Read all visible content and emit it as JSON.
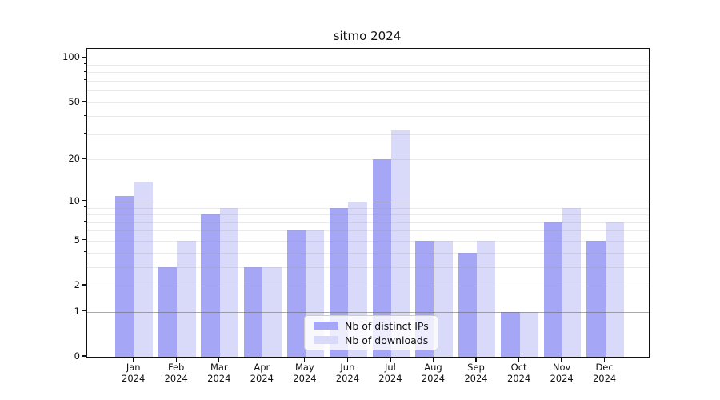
{
  "title": "sitmo 2024",
  "chart_data": {
    "type": "bar",
    "title": "sitmo 2024",
    "xlabel": "",
    "ylabel": "",
    "yscale": "log1p",
    "ylim": [
      0,
      115
    ],
    "yticks": [
      0,
      1,
      2,
      5,
      10,
      20,
      50,
      100
    ],
    "ytick_labels": [
      "0",
      "1",
      "2",
      "5",
      "10",
      "20",
      "50",
      "100"
    ],
    "decade_gridlines": [
      1,
      10,
      100
    ],
    "minor_gridlines": [
      2,
      3,
      4,
      5,
      6,
      7,
      8,
      9,
      20,
      30,
      40,
      50,
      60,
      70,
      80,
      90
    ],
    "grid": true,
    "legend_position": "lower center",
    "categories": [
      "Jan 2024",
      "Feb 2024",
      "Mar 2024",
      "Apr 2024",
      "May 2024",
      "Jun 2024",
      "Jul 2024",
      "Aug 2024",
      "Sep 2024",
      "Oct 2024",
      "Nov 2024",
      "Dec 2024"
    ],
    "category_months": [
      "Jan",
      "Feb",
      "Mar",
      "Apr",
      "May",
      "Jun",
      "Jul",
      "Aug",
      "Sep",
      "Oct",
      "Nov",
      "Dec"
    ],
    "category_year": "2024",
    "series": [
      {
        "name": "Nb of distinct IPs",
        "color": "#a6a6f6",
        "values": [
          11,
          3,
          8,
          3,
          6,
          9,
          20,
          5,
          4,
          1,
          7,
          5
        ]
      },
      {
        "name": "Nb of downloads",
        "color": "#d9d9fa",
        "values": [
          14,
          5,
          9,
          3,
          6,
          10,
          32,
          5,
          5,
          1,
          9,
          7
        ]
      }
    ]
  },
  "colors": {
    "bar_distinct_ips": "#a6a6f6",
    "bar_downloads": "#d9d9fa",
    "axis_spine": "#111111",
    "grid_major": "#a9a9a9",
    "grid_minor": "#e9e9e9",
    "legend_border": "#cccccc",
    "text": "#111111"
  }
}
